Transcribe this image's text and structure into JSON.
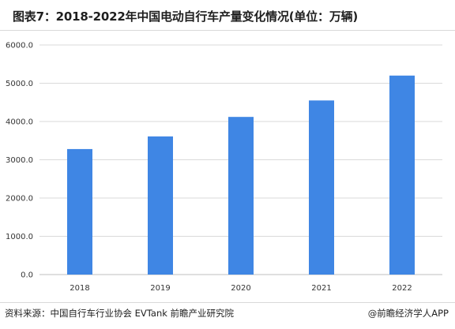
{
  "title": "图表7：2018-2022年中国电动自行车产量变化情况(单位：万辆)",
  "source": "资料来源：中国自行车行业协会 EVTank 前瞻产业研究院",
  "credit": "@前瞻经济学人APP",
  "colors": {
    "bar": "#3f86e4",
    "grid": "#d9d9d9",
    "axis": "#bfbfbf"
  },
  "chart_data": {
    "type": "bar",
    "title": "图表7：2018-2022年中国电动自行车产量变化情况(单位：万辆)",
    "categories": [
      "2018",
      "2019",
      "2020",
      "2021",
      "2022"
    ],
    "values": [
      3280,
      3610,
      4120,
      4550,
      5200
    ],
    "ylim": [
      0,
      6000
    ],
    "yticks": [
      "0.0",
      "1000.0",
      "2000.0",
      "3000.0",
      "4000.0",
      "5000.0",
      "6000.0"
    ],
    "ytick_values": [
      0,
      1000,
      2000,
      3000,
      4000,
      5000,
      6000
    ],
    "xlabel": "",
    "ylabel": "",
    "grid": true,
    "legend": "none"
  }
}
